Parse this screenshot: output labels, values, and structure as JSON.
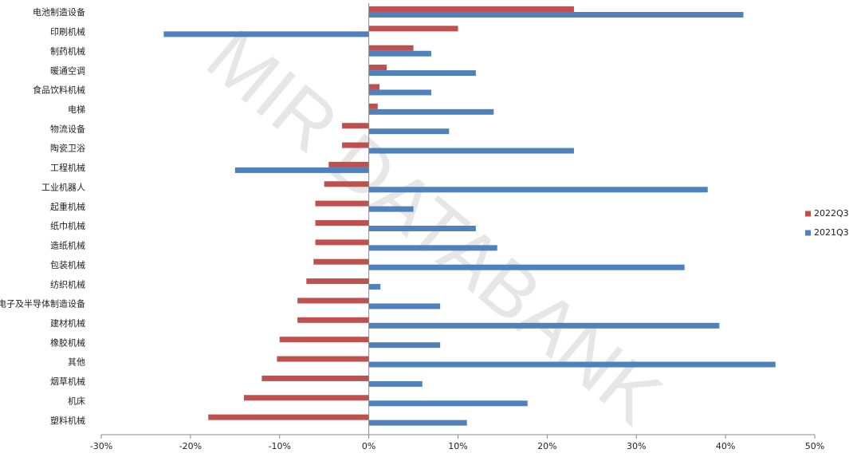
{
  "chart_data": {
    "type": "barh",
    "watermark": "MIR DATABANK",
    "categories": [
      "电池制造设备",
      "印刷机械",
      "制药机械",
      "暖通空调",
      "食品饮料机械",
      "电梯",
      "物流设备",
      "陶瓷卫浴",
      "工程机械",
      "工业机器人",
      "起重机械",
      "纸巾机械",
      "造纸机械",
      "包装机械",
      "纺织机械",
      "电子及半导体制造设备",
      "建材机械",
      "橡胶机械",
      "其他",
      "烟草机械",
      "机床",
      "塑料机械"
    ],
    "series": [
      {
        "name": "2022Q3",
        "color": "#c0504d",
        "values": [
          23,
          10,
          5,
          2,
          1.2,
          1,
          -3,
          -3,
          -4.5,
          -5,
          -6,
          -6,
          -6,
          -6.2,
          -7,
          -8,
          -8,
          -10,
          -10.3,
          -12,
          -14,
          -18
        ]
      },
      {
        "name": "2021Q3",
        "color": "#4f81bd",
        "values": [
          42,
          -23,
          7,
          12,
          7,
          14,
          9,
          23,
          -15,
          38,
          5,
          12,
          14.4,
          35.4,
          1.3,
          8,
          39.3,
          8,
          45.6,
          6,
          17.8,
          11
        ]
      }
    ],
    "xlim": [
      -30,
      50
    ],
    "xticks": [
      {
        "value": -30,
        "label": "-30%"
      },
      {
        "value": -20,
        "label": "-20%"
      },
      {
        "value": -10,
        "label": "-10%"
      },
      {
        "value": 0,
        "label": "0%"
      },
      {
        "value": 10,
        "label": "10%"
      },
      {
        "value": 20,
        "label": "20%"
      },
      {
        "value": 30,
        "label": "30%"
      },
      {
        "value": 40,
        "label": "40%"
      },
      {
        "value": 50,
        "label": "50%"
      }
    ],
    "legend": "right"
  }
}
